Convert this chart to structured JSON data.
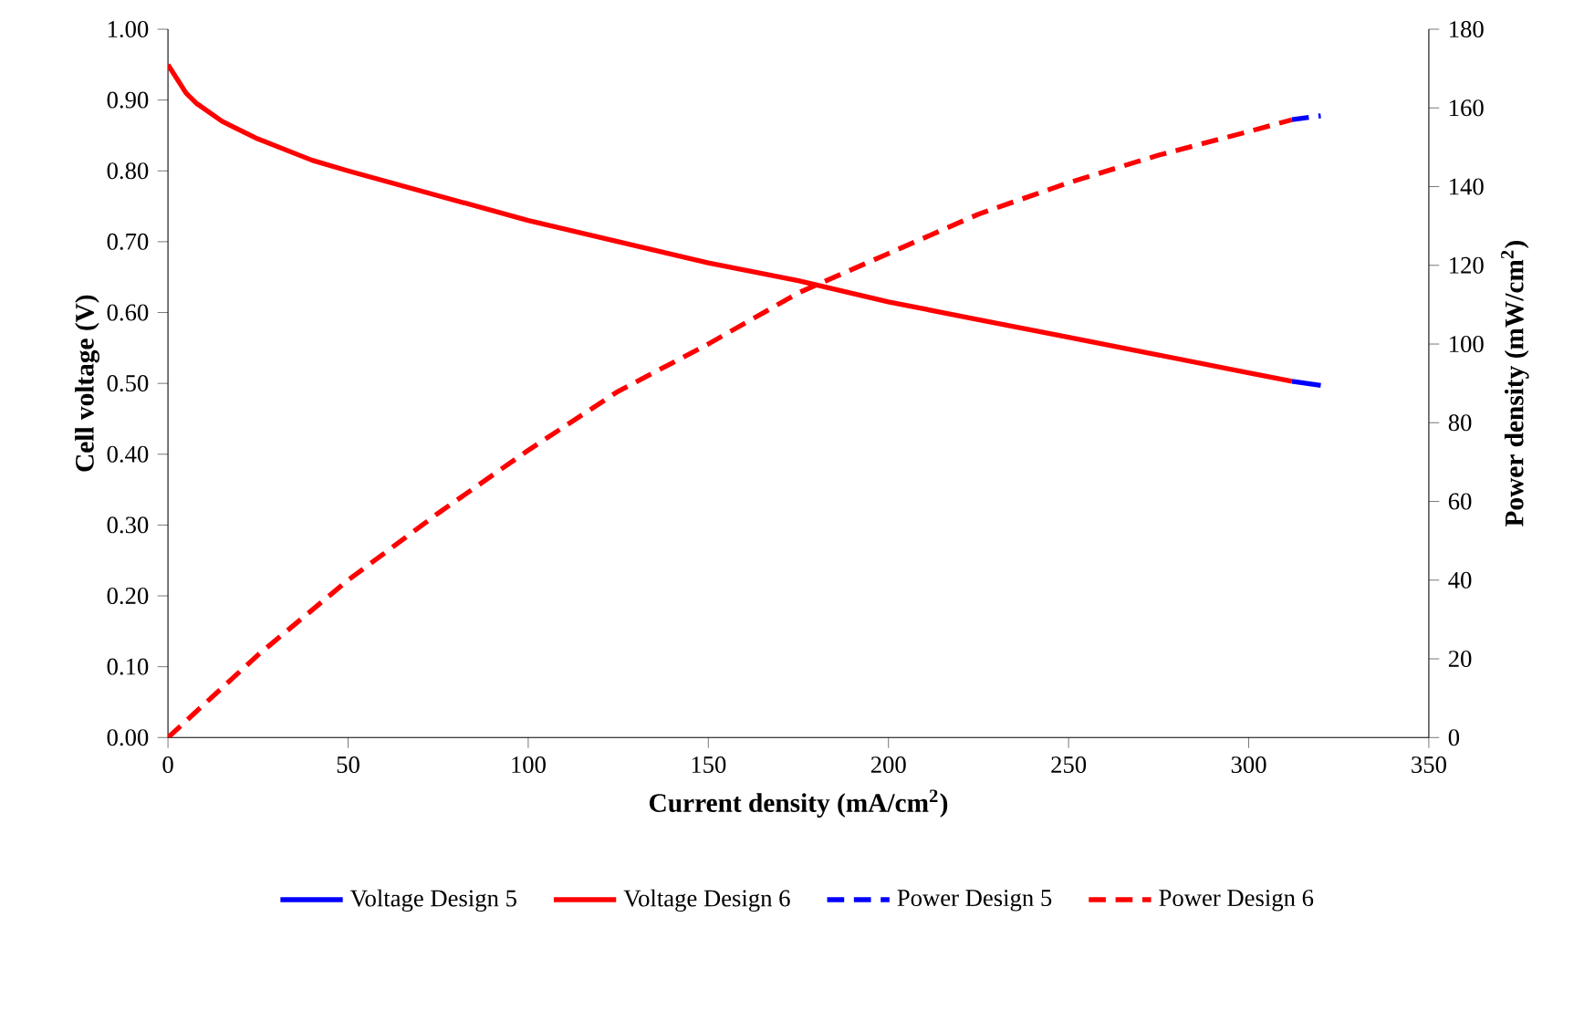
{
  "chart_data": {
    "type": "line",
    "xlabel": "Current density (mA/cm$^{2}$)",
    "ylabel": "Cell voltage (V)",
    "y2label": "Power density (mW/cm$^{2}$)",
    "xlim": [
      0,
      350
    ],
    "xticks": [
      0,
      50,
      100,
      150,
      200,
      250,
      300,
      350
    ],
    "ylim": [
      0,
      1
    ],
    "yticks": [
      {
        "value": 0,
        "label": "0.00"
      },
      {
        "value": 0.1,
        "label": "0.10"
      },
      {
        "value": 0.2,
        "label": "0.20"
      },
      {
        "value": 0.3,
        "label": "0.30"
      },
      {
        "value": 0.4,
        "label": "0.40"
      },
      {
        "value": 0.5,
        "label": "0.50"
      },
      {
        "value": 0.6,
        "label": "0.60"
      },
      {
        "value": 0.7,
        "label": "0.70"
      },
      {
        "value": 0.8,
        "label": "0.80"
      },
      {
        "value": 0.9,
        "label": "0.90"
      },
      {
        "value": 1,
        "label": "1.00"
      }
    ],
    "y2lim": [
      0,
      180
    ],
    "y2ticks": [
      0,
      20,
      40,
      60,
      80,
      100,
      120,
      140,
      160,
      180
    ],
    "legend": "bottom",
    "marker": "none",
    "grid": false,
    "series": [
      {
        "name": "Voltage Design 5",
        "color": "#0000ff",
        "line_style": "solid",
        "x": [
          312,
          320
        ],
        "values": [
          0.503,
          0.497
        ]
      },
      {
        "name": "Voltage Design 6",
        "color": "#ff0000",
        "line_style": "solid",
        "x": [
          0,
          5,
          8,
          15,
          25,
          40,
          50,
          75,
          100,
          125,
          150,
          175,
          200,
          225,
          250,
          275,
          300,
          312
        ],
        "values": [
          0.95,
          0.91,
          0.895,
          0.87,
          0.845,
          0.815,
          0.8,
          0.765,
          0.73,
          0.7,
          0.67,
          0.645,
          0.615,
          0.59,
          0.565,
          0.54,
          0.515,
          0.503
        ]
      },
      {
        "name": "Power Design 5",
        "color": "#0000ff",
        "line_style": "dashed",
        "axis": "y2",
        "x": [
          312,
          320
        ],
        "values": [
          157,
          158
        ]
      },
      {
        "name": "Power Design 6",
        "color": "#ff0000",
        "line_style": "dashed",
        "axis": "y2",
        "x": [
          0,
          25,
          50,
          75,
          100,
          125,
          150,
          175,
          200,
          225,
          250,
          275,
          300,
          312
        ],
        "values": [
          0,
          21,
          40,
          57,
          73,
          88,
          100,
          113,
          123,
          133,
          141,
          148,
          154,
          157
        ]
      }
    ]
  }
}
